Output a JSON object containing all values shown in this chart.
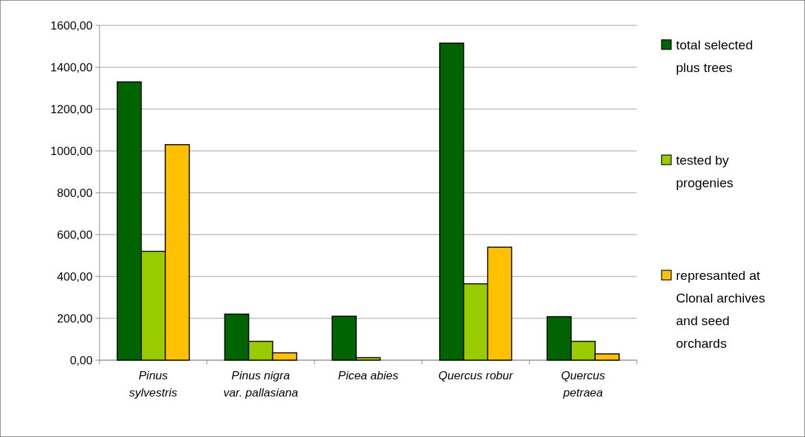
{
  "chart_data": {
    "type": "bar",
    "categories": [
      "Pinus\nsylvestris",
      "Pinus nigra\nvar. pallasiana",
      "Picea abies",
      "Quercus robur",
      "Quercus\npetraea"
    ],
    "series": [
      {
        "name": "total selected\nplus trees",
        "color": "#006400",
        "values": [
          1330,
          220,
          210,
          1515,
          208
        ]
      },
      {
        "name": "tested by\nprogenies",
        "color": "#99cc00",
        "values": [
          520,
          90,
          12,
          365,
          90
        ]
      },
      {
        "name": "represanted at\nClonal archives\nand seed\norchards",
        "color": "#ffc000",
        "values": [
          1030,
          35,
          0,
          540,
          30
        ]
      }
    ],
    "ylim": [
      0,
      1600
    ],
    "yticks": [
      {
        "value": 0,
        "label": "0,00"
      },
      {
        "value": 200,
        "label": "200,00"
      },
      {
        "value": 400,
        "label": "400,00"
      },
      {
        "value": 600,
        "label": "600,00"
      },
      {
        "value": 800,
        "label": "800,00"
      },
      {
        "value": 1000,
        "label": "1000,00"
      },
      {
        "value": 1200,
        "label": "1200,00"
      },
      {
        "value": 1400,
        "label": "1400,00"
      },
      {
        "value": 1600,
        "label": "1600,00"
      }
    ],
    "grid": "y",
    "legend": "right"
  }
}
